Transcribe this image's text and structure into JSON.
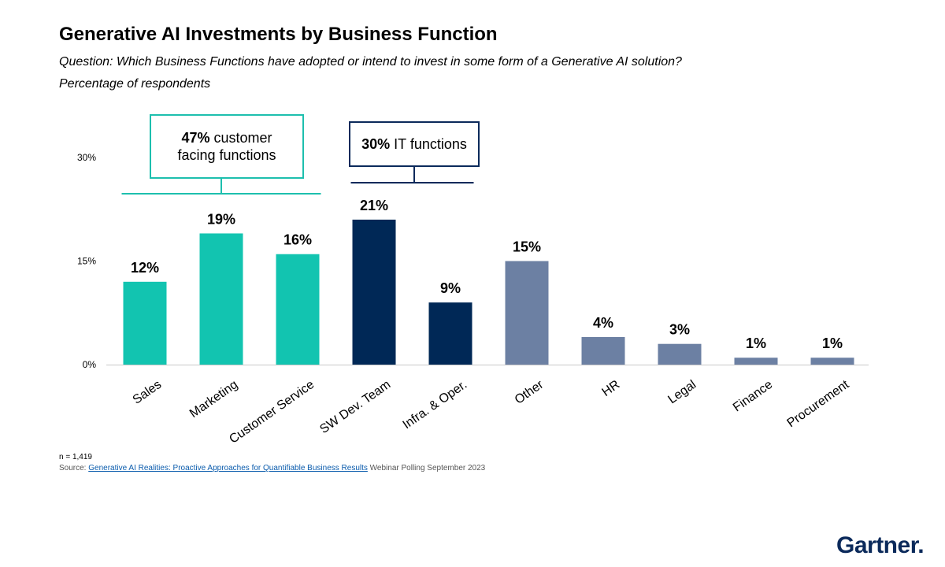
{
  "title": "Generative AI Investments by Business Function",
  "subtitle": "Question: Which Business Functions have adopted or intend to invest in some form of a Generative AI solution?",
  "subtitle2": "Percentage of respondents",
  "callouts": {
    "customer": {
      "pct": "47%",
      "line1": "customer",
      "line2": "facing functions",
      "color": "#1dbfae"
    },
    "it": {
      "pct": "30%",
      "text": "IT functions",
      "color": "#0b2a5b"
    }
  },
  "footnote": "n = 1,419",
  "source": {
    "prefix": "Source: ",
    "link": "Generative AI Realities: Proactive Approaches for Quantifiable Business Results",
    "suffix": " Webinar Polling September 2023"
  },
  "logo": "Gartner.",
  "chart_data": {
    "type": "bar",
    "categories": [
      "Sales",
      "Marketing",
      "Customer Service",
      "SW Dev. Team",
      "Infra. & Oper.",
      "Other",
      "HR",
      "Legal",
      "Finance",
      "Procurement"
    ],
    "values": [
      12,
      19,
      16,
      21,
      9,
      15,
      4,
      3,
      1,
      1
    ],
    "labels": [
      "12%",
      "19%",
      "16%",
      "21%",
      "9%",
      "15%",
      "4%",
      "3%",
      "1%",
      "1%"
    ],
    "groups": [
      "customer",
      "customer",
      "customer",
      "it",
      "it",
      "other",
      "other",
      "other",
      "other",
      "other"
    ],
    "colors": {
      "customer": "#12c4b0",
      "it": "#002856",
      "other": "#6c80a3"
    },
    "yticks": [
      0,
      15,
      30
    ],
    "ytick_labels": [
      "0%",
      "15%",
      "30%"
    ],
    "ylim": [
      0,
      30
    ],
    "title": "Generative AI Investments by Business Function",
    "xlabel": "",
    "ylabel": "Percentage of respondents"
  }
}
